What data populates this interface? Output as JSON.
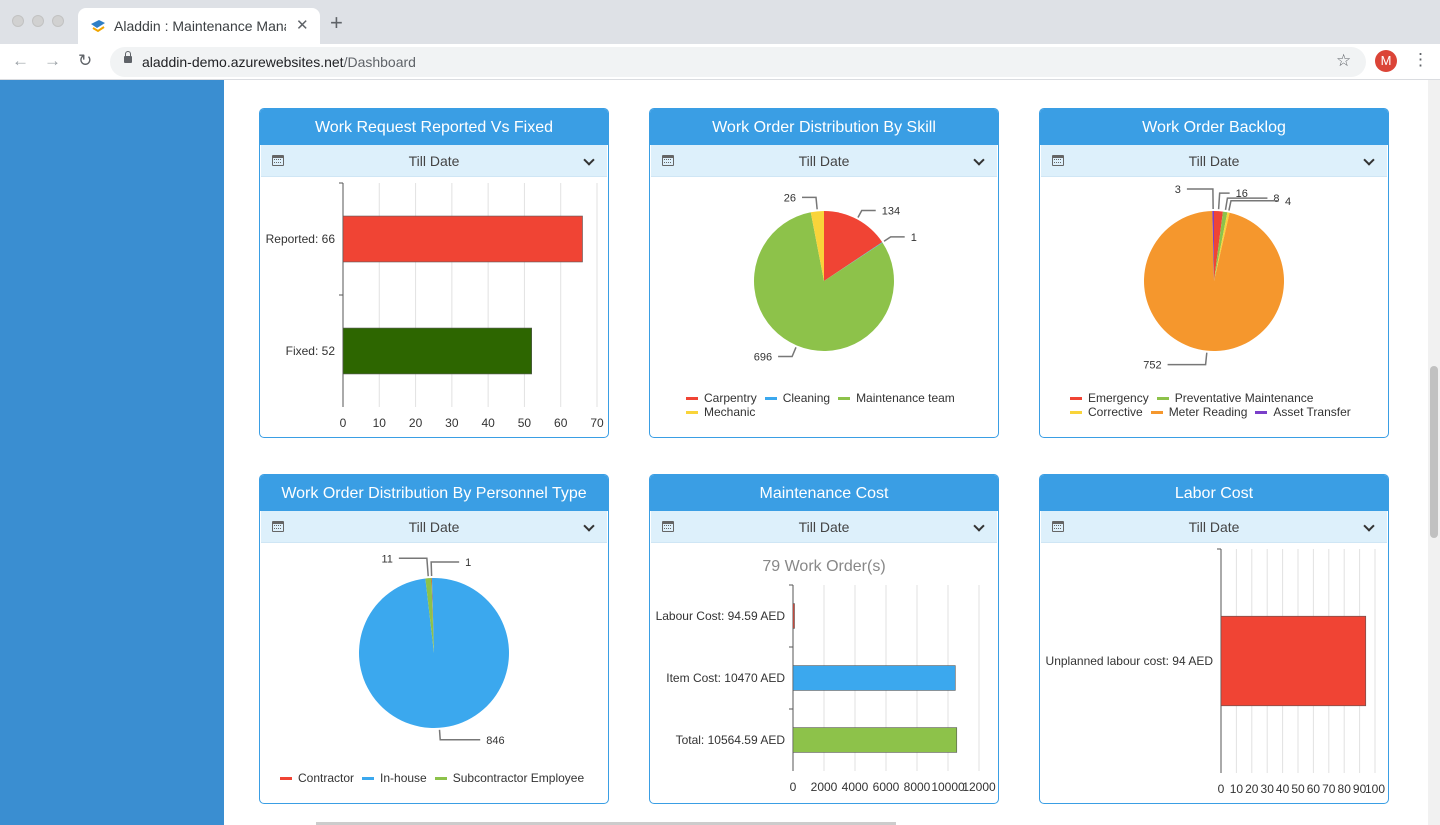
{
  "browser": {
    "tab_title": "Aladdin : Maintenance Management",
    "url_host": "aladdin-demo.azurewebsites.net",
    "url_path": "/Dashboard",
    "avatar_letter": "M"
  },
  "filter_label": "Till Date",
  "cards": [
    {
      "title": "Work Request Reported Vs Fixed"
    },
    {
      "title": "Work Order Distribution By Skill"
    },
    {
      "title": "Work Order Backlog"
    },
    {
      "title": "Work Order Distribution By Personnel Type"
    },
    {
      "title": "Maintenance Cost",
      "subtitle": "79 Work Order(s)"
    },
    {
      "title": "Labor Cost"
    }
  ],
  "chart_data": [
    {
      "type": "bar",
      "orientation": "horizontal",
      "title": "Work Request Reported Vs Fixed",
      "categories": [
        "Reported: 66",
        "Fixed: 52"
      ],
      "values": [
        66,
        52
      ],
      "colors": [
        "#f04434",
        "#2d6600"
      ],
      "xlim": [
        0,
        70
      ],
      "xticks": [
        0,
        10,
        20,
        30,
        40,
        50,
        60,
        70
      ],
      "grid": true
    },
    {
      "type": "pie",
      "title": "Work Order Distribution By Skill",
      "labels": [
        "Carpentry",
        "Cleaning",
        "Maintenance team",
        "Mechanic"
      ],
      "values": [
        134,
        1,
        696,
        26
      ],
      "colors": [
        "#f04434",
        "#3ba8ee",
        "#8dc24a",
        "#f9d43a"
      ]
    },
    {
      "type": "pie",
      "title": "Work Order Backlog",
      "labels": [
        "Emergency",
        "Preventative Maintenance",
        "Corrective",
        "Meter Reading",
        "Asset Transfer"
      ],
      "values": [
        16,
        8,
        4,
        752,
        3
      ],
      "colors": [
        "#f04434",
        "#8dc24a",
        "#f9d43a",
        "#f5972d",
        "#7a3fc9"
      ],
      "slice_order": [
        0,
        1,
        2,
        3,
        4
      ],
      "pie_value_order": [
        16,
        8,
        4,
        752,
        3
      ]
    },
    {
      "type": "pie",
      "title": "Work Order Distribution By Personnel Type",
      "labels": [
        "Contractor",
        "In-house",
        "Subcontractor Employee"
      ],
      "values": [
        1,
        846,
        11
      ],
      "colors": [
        "#f04434",
        "#3ba8ee",
        "#8dc24a"
      ]
    },
    {
      "type": "bar",
      "orientation": "horizontal",
      "title": "Maintenance Cost",
      "subtitle": "79 Work Order(s)",
      "categories": [
        "Labour Cost: 94.59 AED",
        "Item Cost: 10470 AED",
        "Total: 10564.59 AED"
      ],
      "values": [
        94.59,
        10470,
        10564.59
      ],
      "colors": [
        "#f04434",
        "#3ba8ee",
        "#8dc24a"
      ],
      "xlim": [
        0,
        12000
      ],
      "xticks": [
        0,
        2000,
        4000,
        6000,
        8000,
        10000,
        12000
      ],
      "grid": true
    },
    {
      "type": "bar",
      "orientation": "horizontal",
      "title": "Labor Cost",
      "categories": [
        "Unplanned labour cost: 94 AED"
      ],
      "values": [
        94
      ],
      "colors": [
        "#f04434"
      ],
      "xlim": [
        0,
        100
      ],
      "xticks": [
        0,
        10,
        20,
        30,
        40,
        50,
        60,
        70,
        80,
        90,
        100
      ],
      "grid": true
    }
  ]
}
